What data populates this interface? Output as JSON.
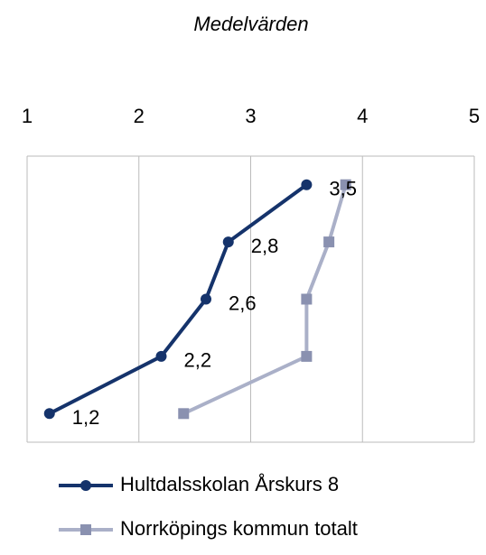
{
  "chart_data": {
    "type": "line",
    "title": "Medelvärden",
    "categories": [
      null,
      null,
      null,
      null,
      null
    ],
    "xlim": [
      1,
      5
    ],
    "xticks": [
      1,
      2,
      3,
      4,
      5
    ],
    "grid": true,
    "series": [
      {
        "name": "Hultdalsskolan Årskurs 8",
        "color": "#15336b",
        "marker": "circle",
        "values": [
          1.2,
          2.2,
          2.6,
          2.8,
          3.5
        ],
        "value_labels": [
          "1,2",
          "2,2",
          "2,6",
          "2,8",
          "3,5"
        ]
      },
      {
        "name": "Norrköpings kommun totalt",
        "color": "#aab0c8",
        "marker": "square",
        "values": [
          2.4,
          3.5,
          3.5,
          3.7,
          3.85
        ]
      }
    ]
  }
}
